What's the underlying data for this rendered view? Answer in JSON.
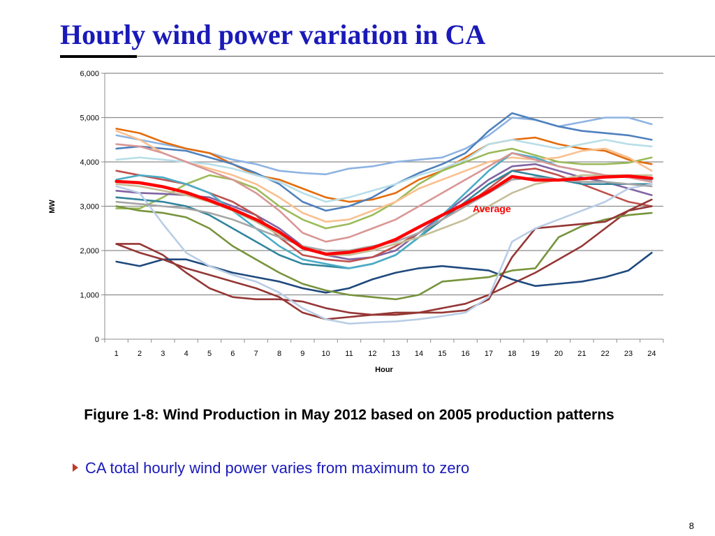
{
  "slide": {
    "title": "Hourly wind power variation in CA",
    "caption": "Figure 1-8: Wind Production in May 2012 based on 2005 production patterns",
    "bullet": "CA total hourly wind power varies from maximum to zero",
    "page_number": "8"
  },
  "chart_data": {
    "type": "line",
    "ylabel": "MW",
    "xlabel": "Hour",
    "ylim": [
      0,
      6000
    ],
    "yticks": [
      0,
      1000,
      2000,
      3000,
      4000,
      5000,
      6000
    ],
    "ytick_labels": [
      "0",
      "1,000",
      "2,000",
      "3,000",
      "4,000",
      "5,000",
      "6,000"
    ],
    "x": [
      1,
      2,
      3,
      4,
      5,
      6,
      7,
      8,
      9,
      10,
      11,
      12,
      13,
      14,
      15,
      16,
      17,
      18,
      19,
      20,
      21,
      22,
      23,
      24
    ],
    "grid": "horizontal",
    "annotation": "Average",
    "average_color": "#ff0000",
    "series": [
      {
        "color": "#8db3e2",
        "values": [
          4600,
          4500,
          4400,
          4300,
          4200,
          4050,
          3950,
          3800,
          3750,
          3720,
          3850,
          3900,
          4000,
          4050,
          4100,
          4300,
          4600,
          5000,
          4950,
          4800,
          4900,
          5000,
          5000,
          4850
        ]
      },
      {
        "color": "#e46c0a",
        "values": [
          4750,
          4650,
          4450,
          4300,
          4200,
          3950,
          3700,
          3600,
          3400,
          3200,
          3100,
          3150,
          3300,
          3600,
          3800,
          4100,
          4400,
          4500,
          4550,
          4400,
          4300,
          4250,
          4050,
          3950
        ]
      },
      {
        "color": "#4f81bd",
        "values": [
          4300,
          4350,
          4300,
          4250,
          4100,
          3950,
          3750,
          3500,
          3100,
          2900,
          3000,
          3200,
          3500,
          3750,
          3950,
          4200,
          4700,
          5100,
          4950,
          4800,
          4700,
          4650,
          4600,
          4500
        ]
      },
      {
        "color": "#9bbb59",
        "values": [
          2950,
          2950,
          3200,
          3500,
          3700,
          3600,
          3400,
          3000,
          2700,
          2500,
          2600,
          2800,
          3100,
          3500,
          3800,
          4000,
          4200,
          4300,
          4150,
          4000,
          3950,
          3950,
          3980,
          4100
        ]
      },
      {
        "color": "#fac08f",
        "values": [
          4700,
          4500,
          4200,
          4000,
          3850,
          3700,
          3500,
          3200,
          2850,
          2650,
          2700,
          2900,
          3100,
          3400,
          3600,
          3800,
          4000,
          4100,
          4050,
          4100,
          4250,
          4300,
          4100,
          3800
        ]
      },
      {
        "color": "#b7dee8",
        "values": [
          4050,
          4100,
          4050,
          4000,
          3950,
          3850,
          3700,
          3550,
          3300,
          3100,
          3200,
          3350,
          3500,
          3700,
          3850,
          4050,
          4400,
          4500,
          4400,
          4300,
          4400,
          4500,
          4400,
          4350
        ]
      },
      {
        "color": "#8064a2",
        "values": [
          3350,
          3300,
          3280,
          3250,
          3200,
          3000,
          2800,
          2500,
          2100,
          1900,
          1800,
          1850,
          2000,
          2400,
          2800,
          3200,
          3600,
          3900,
          3950,
          3800,
          3650,
          3550,
          3400,
          3250
        ]
      },
      {
        "color": "#c0504d",
        "values": [
          3800,
          3700,
          3600,
          3500,
          3300,
          3100,
          2800,
          2300,
          1900,
          1800,
          1750,
          1850,
          2100,
          2400,
          2700,
          3000,
          3400,
          3800,
          3850,
          3700,
          3500,
          3300,
          3100,
          3000
        ]
      },
      {
        "color": "#31859c",
        "values": [
          3200,
          3150,
          3100,
          3000,
          2800,
          2500,
          2200,
          1900,
          1700,
          1650,
          1600,
          1700,
          1900,
          2300,
          2700,
          3100,
          3500,
          3800,
          3700,
          3600,
          3500,
          3500,
          3500,
          3500
        ]
      },
      {
        "color": "#4bacc6",
        "values": [
          3600,
          3700,
          3650,
          3500,
          3300,
          2900,
          2500,
          2100,
          1800,
          1700,
          1600,
          1700,
          1900,
          2300,
          2800,
          3300,
          3800,
          4200,
          4100,
          3900,
          3800,
          3700,
          3650,
          3600
        ]
      },
      {
        "color": "#953735",
        "values": [
          2150,
          2150,
          1900,
          1500,
          1150,
          950,
          900,
          900,
          850,
          700,
          600,
          550,
          550,
          600,
          700,
          800,
          1000,
          1250,
          1500,
          1800,
          2100,
          2500,
          2900,
          3150
        ]
      },
      {
        "color": "#1f497d",
        "values": [
          1750,
          1650,
          1800,
          1800,
          1650,
          1500,
          1400,
          1300,
          1150,
          1050,
          1150,
          1350,
          1500,
          1600,
          1650,
          1600,
          1550,
          1350,
          1200,
          1250,
          1300,
          1400,
          1550,
          1950
        ]
      },
      {
        "color": "#77933c",
        "values": [
          3000,
          2900,
          2850,
          2750,
          2500,
          2100,
          1800,
          1500,
          1250,
          1100,
          1000,
          950,
          900,
          1000,
          1300,
          1350,
          1400,
          1550,
          1600,
          2300,
          2550,
          2700,
          2800,
          2850
        ]
      },
      {
        "color": "#c4bd97",
        "values": [
          3500,
          3450,
          3350,
          3250,
          3100,
          2900,
          2650,
          2350,
          2100,
          1900,
          1900,
          2000,
          2150,
          2300,
          2500,
          2700,
          3000,
          3300,
          3500,
          3600,
          3700,
          3700,
          3700,
          3700
        ]
      },
      {
        "color": "#943634",
        "values": [
          2150,
          1950,
          1800,
          1600,
          1450,
          1300,
          1150,
          950,
          600,
          450,
          500,
          550,
          600,
          600,
          600,
          650,
          900,
          1850,
          2500,
          2550,
          2600,
          2650,
          2900,
          3000
        ]
      },
      {
        "color": "#b9cde5",
        "values": [
          3450,
          3300,
          2600,
          1950,
          1650,
          1450,
          1300,
          1050,
          700,
          450,
          350,
          380,
          400,
          450,
          520,
          600,
          950,
          2200,
          2500,
          2700,
          2900,
          3100,
          3400,
          3500
        ]
      },
      {
        "color": "#a6a6a6",
        "values": [
          3100,
          3050,
          3000,
          2950,
          2850,
          2700,
          2500,
          2300,
          2100,
          2000,
          2000,
          2100,
          2200,
          2400,
          2700,
          3000,
          3300,
          3600,
          3650,
          3600,
          3550,
          3550,
          3500,
          3450
        ]
      },
      {
        "color": "#d99694",
        "values": [
          4400,
          4350,
          4200,
          4000,
          3800,
          3600,
          3300,
          2900,
          2400,
          2200,
          2300,
          2500,
          2700,
          3000,
          3300,
          3600,
          3900,
          4200,
          4050,
          3900,
          3800,
          3700,
          3650,
          3550
        ]
      },
      {
        "color": "#ff0000",
        "values": [
          3560,
          3530,
          3440,
          3310,
          3130,
          2930,
          2700,
          2420,
          2060,
          1920,
          1960,
          2060,
          2250,
          2530,
          2800,
          3060,
          3330,
          3670,
          3590,
          3590,
          3620,
          3660,
          3680,
          3630
        ]
      }
    ]
  }
}
